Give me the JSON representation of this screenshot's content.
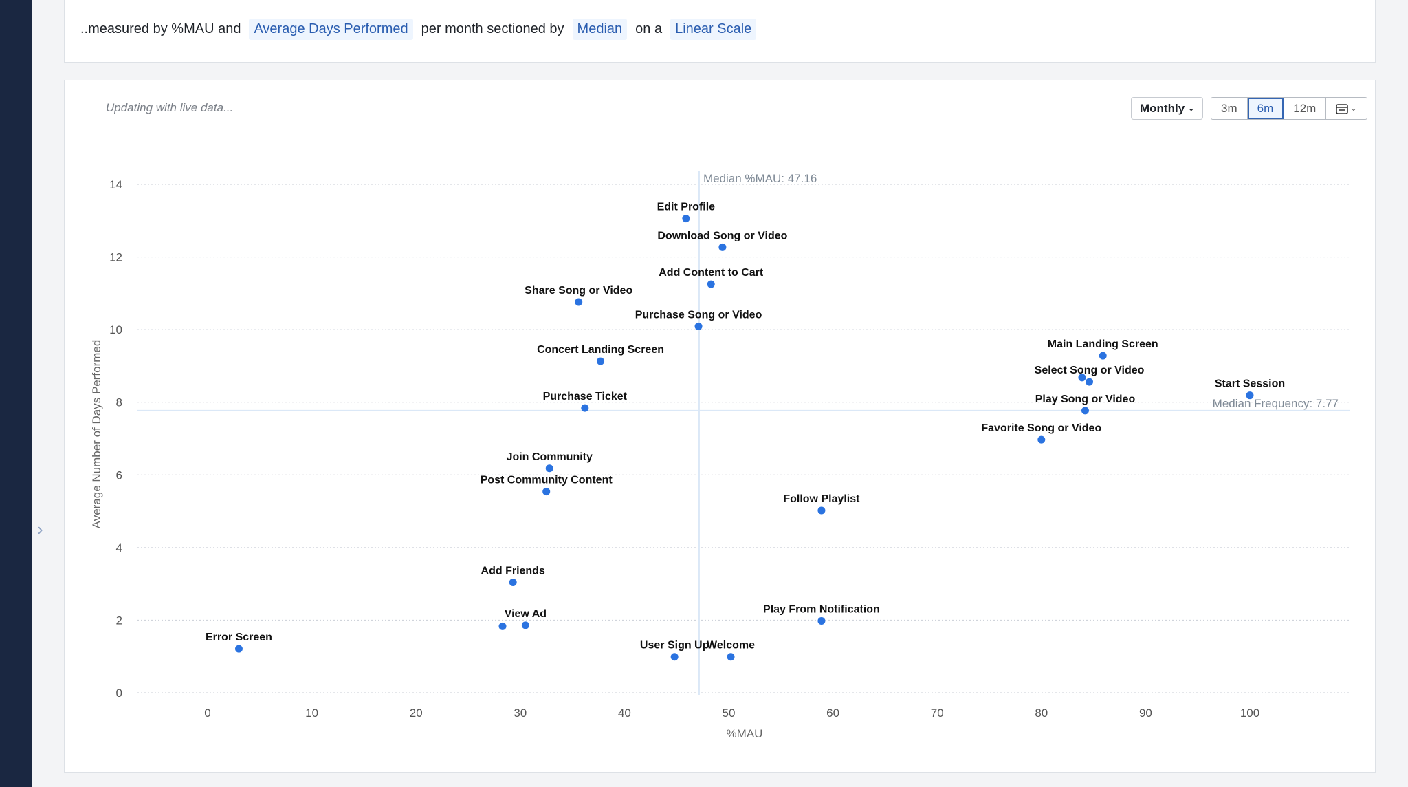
{
  "header": {
    "prefix": "..measured by %MAU and",
    "metric": "Average Days Performed",
    "mid": "per month sectioned by",
    "section": "Median",
    "onA": "on a",
    "scale": "Linear Scale"
  },
  "chart_panel": {
    "status": "Updating with live data...",
    "interval": "Monthly",
    "ranges": [
      "3m",
      "6m",
      "12m"
    ],
    "active_range": "6m",
    "calendar_icon": "calendar-icon"
  },
  "colors": {
    "point": "#2b73e0",
    "chip_text": "#2a5db0",
    "sidebar": "#1a2741"
  },
  "chart_data": {
    "type": "scatter",
    "xlabel": "%MAU",
    "ylabel": "Average Number of Days Performed",
    "xlim": [
      -6.7,
      109.6
    ],
    "ylim": [
      0,
      14
    ],
    "xticks": [
      0,
      10,
      20,
      30,
      40,
      50,
      60,
      70,
      80,
      90,
      100
    ],
    "yticks": [
      0,
      2,
      4,
      6,
      8,
      10,
      12,
      14
    ],
    "grid": "horizontal dotted",
    "median_x": {
      "value": 47.16,
      "label": "Median %MAU: 47.16"
    },
    "median_y": {
      "value": 7.77,
      "label": "Median Frequency: 7.77"
    },
    "points": [
      {
        "label": "Edit Profile",
        "x": 45.9,
        "y": 13.06
      },
      {
        "label": "Download Song or Video",
        "x": 49.4,
        "y": 12.27
      },
      {
        "label": "Add Content to Cart",
        "x": 48.3,
        "y": 11.25
      },
      {
        "label": "Share Song or Video",
        "x": 35.6,
        "y": 10.76
      },
      {
        "label": "Purchase Song or Video",
        "x": 47.1,
        "y": 10.09
      },
      {
        "label": "Concert Landing Screen",
        "x": 37.7,
        "y": 9.13
      },
      {
        "label": "Main Landing Screen",
        "x": 85.9,
        "y": 9.28
      },
      {
        "label": "",
        "x": 83.9,
        "y": 8.68
      },
      {
        "label": "Select Song or Video",
        "x": 84.6,
        "y": 8.56
      },
      {
        "label": "Start Session",
        "x": 100,
        "y": 8.19
      },
      {
        "label": "Play Song or Video",
        "x": 84.2,
        "y": 7.77
      },
      {
        "label": "Purchase Ticket",
        "x": 36.2,
        "y": 7.84
      },
      {
        "label": "Favorite Song or Video",
        "x": 80.0,
        "y": 6.97
      },
      {
        "label": "Join Community",
        "x": 32.8,
        "y": 6.18
      },
      {
        "label": "Post Community Content",
        "x": 32.5,
        "y": 5.54
      },
      {
        "label": "Follow Playlist",
        "x": 58.9,
        "y": 5.02
      },
      {
        "label": "Add Friends",
        "x": 29.3,
        "y": 3.04
      },
      {
        "label": "",
        "x": 28.3,
        "y": 1.83
      },
      {
        "label": "View Ad",
        "x": 30.5,
        "y": 1.86
      },
      {
        "label": "Play From Notification",
        "x": 58.9,
        "y": 1.98
      },
      {
        "label": "Error Screen",
        "x": 3.0,
        "y": 1.21
      },
      {
        "label": "User Sign Up",
        "x": 44.8,
        "y": 0.99
      },
      {
        "label": "Welcome",
        "x": 50.2,
        "y": 0.99
      }
    ]
  }
}
